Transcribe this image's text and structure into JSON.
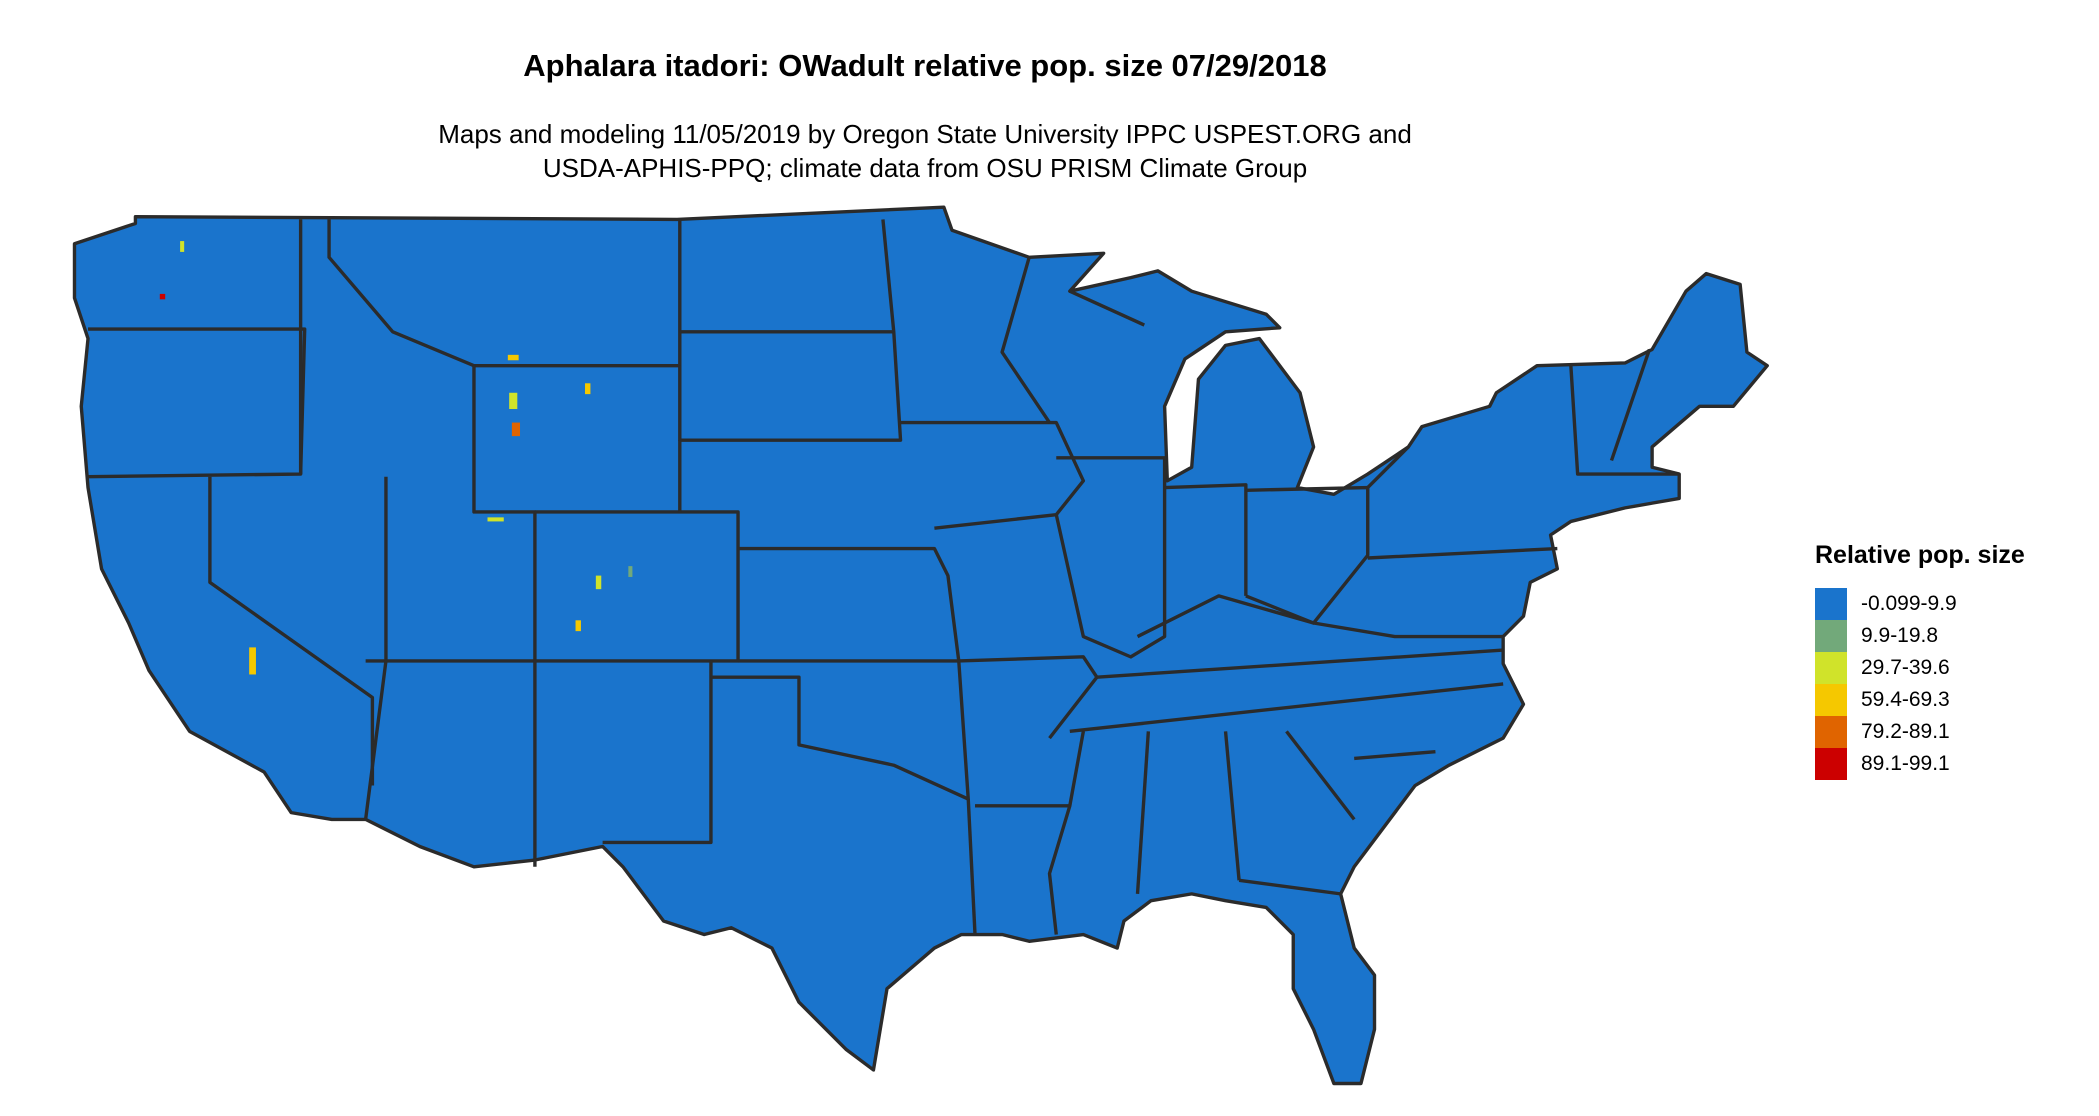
{
  "title": "Aphalara itadori: OWadult relative pop. size 07/29/2018",
  "subtitle_line1": "Maps and modeling 11/05/2019 by Oregon State University IPPC USPEST.ORG and",
  "subtitle_line2": "USDA-APHIS-PPQ; climate data from OSU PRISM Climate Group",
  "map": {
    "region": "Contiguous United States",
    "base_color": "#1a74cc",
    "border_color": "#2b2b2b"
  },
  "legend": {
    "title": "Relative pop. size",
    "items": [
      {
        "label": "-0.099-9.9",
        "color": "#1a74cc"
      },
      {
        "label": "9.9-19.8",
        "color": "#72a97a"
      },
      {
        "label": "29.7-39.6",
        "color": "#d0e32a"
      },
      {
        "label": "59.4-69.3",
        "color": "#f5c800"
      },
      {
        "label": "79.2-89.1",
        "color": "#e06400"
      },
      {
        "label": "89.1-99.1",
        "color": "#cc0000"
      }
    ]
  }
}
